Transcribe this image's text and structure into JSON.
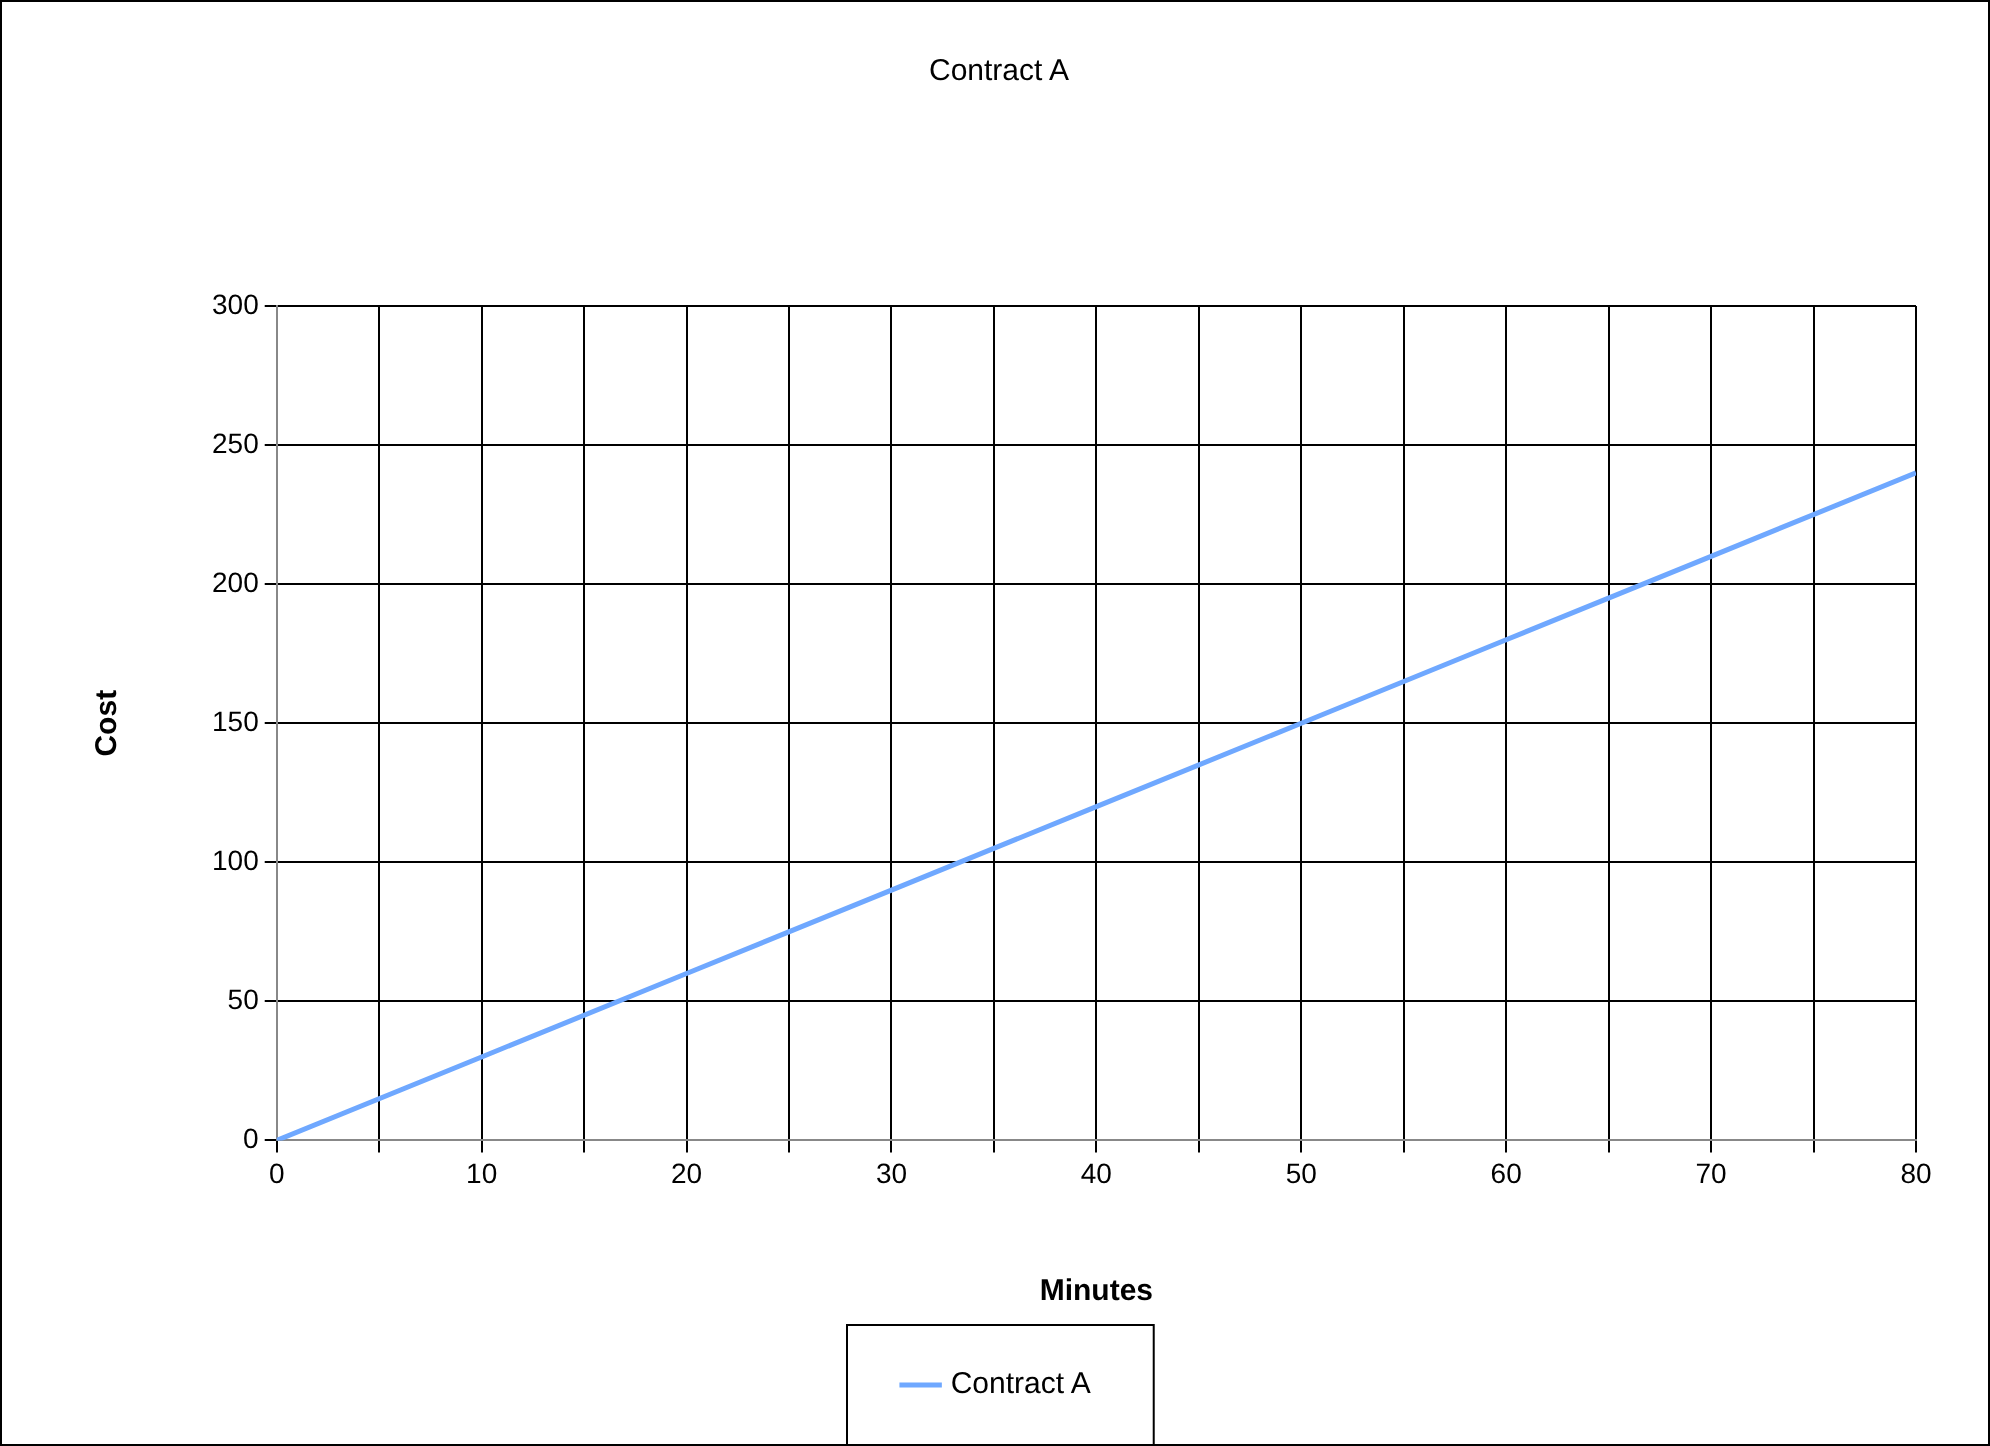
{
  "chart_data": {
    "type": "line",
    "title": "Contract A",
    "xlabel": "Minutes",
    "ylabel": "Cost",
    "x": [
      0,
      10,
      20,
      30,
      40,
      50,
      60,
      70,
      80
    ],
    "series": [
      {
        "name": "Contract A",
        "color": "#6fa8ff",
        "values": [
          0,
          30,
          60,
          90,
          120,
          150,
          180,
          210,
          240
        ]
      }
    ],
    "xlim": [
      0,
      80
    ],
    "xticks": [
      0,
      {
        "value": 5,
        "label": null
      },
      10,
      {
        "value": 15,
        "label": null
      },
      20,
      {
        "value": 25,
        "label": null
      },
      30,
      {
        "value": 35,
        "label": null
      },
      40,
      {
        "value": 45,
        "label": null
      },
      50,
      {
        "value": 55,
        "label": null
      },
      60,
      {
        "value": 65,
        "label": null
      },
      70,
      {
        "value": 75,
        "label": null
      },
      80
    ],
    "ylim": [
      0,
      300
    ],
    "yticks": [
      0,
      50,
      100,
      150,
      200,
      250,
      300
    ],
    "grid": true,
    "legend": "bottom",
    "marker": "none",
    "line_style": "solid"
  }
}
